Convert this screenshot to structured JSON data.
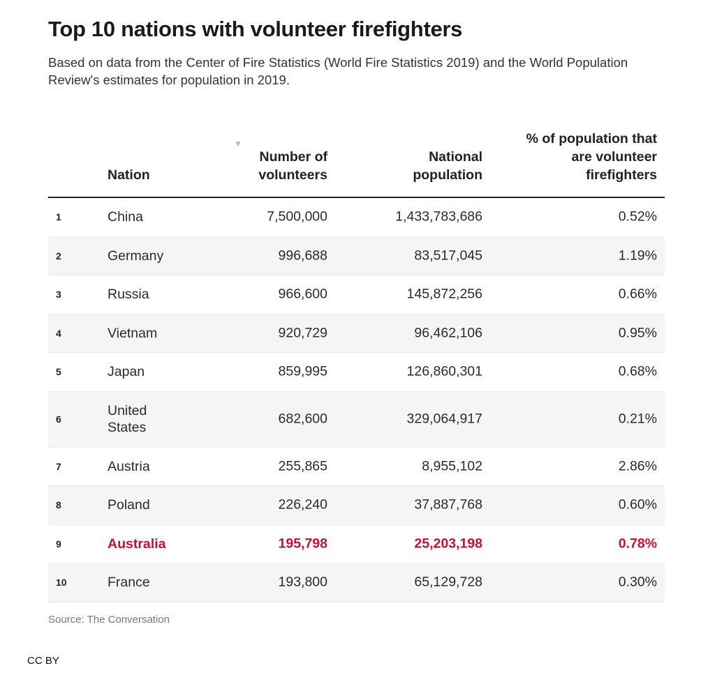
{
  "title": "Top 10 nations with volunteer firefighters",
  "subtitle": "Based on data from the Center of Fire Statistics (World Fire Statistics 2019) and the World Population Review's estimates for population in 2019.",
  "table": {
    "headers": {
      "rank": "",
      "nation": "Nation",
      "volunteers": "Number of volunteers",
      "population": "National population",
      "percent": "% of population that are volunteer firefighters"
    },
    "sort_icon": "sort-down-icon",
    "highlight_color": "#c8102e",
    "rows": [
      {
        "rank": "1",
        "nation": "China",
        "volunteers": "7,500,000",
        "population": "1,433,783,686",
        "percent": "0.52%"
      },
      {
        "rank": "2",
        "nation": "Germany",
        "volunteers": "996,688",
        "population": "83,517,045",
        "percent": "1.19%"
      },
      {
        "rank": "3",
        "nation": "Russia",
        "volunteers": "966,600",
        "population": "145,872,256",
        "percent": "0.66%"
      },
      {
        "rank": "4",
        "nation": "Vietnam",
        "volunteers": "920,729",
        "population": "96,462,106",
        "percent": "0.95%"
      },
      {
        "rank": "5",
        "nation": "Japan",
        "volunteers": "859,995",
        "population": "126,860,301",
        "percent": "0.68%"
      },
      {
        "rank": "6",
        "nation": "United States",
        "volunteers": "682,600",
        "population": "329,064,917",
        "percent": "0.21%"
      },
      {
        "rank": "7",
        "nation": "Austria",
        "volunteers": "255,865",
        "population": "8,955,102",
        "percent": "2.86%"
      },
      {
        "rank": "8",
        "nation": "Poland",
        "volunteers": "226,240",
        "population": "37,887,768",
        "percent": "0.60%"
      },
      {
        "rank": "9",
        "nation": "Australia",
        "volunteers": "195,798",
        "population": "25,203,198",
        "percent": "0.78%"
      },
      {
        "rank": "10",
        "nation": "France",
        "volunteers": "193,800",
        "population": "65,129,728",
        "percent": "0.30%"
      }
    ]
  },
  "source": "Source: The Conversation",
  "license": "CC BY"
}
